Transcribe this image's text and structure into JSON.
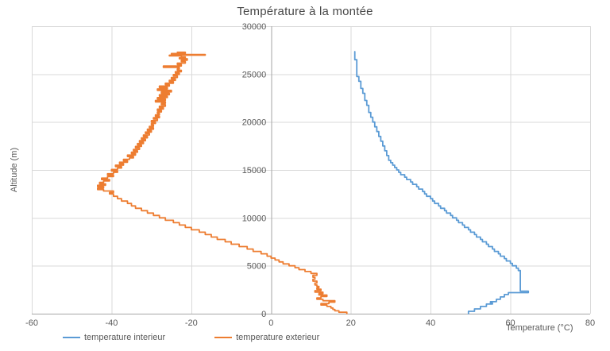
{
  "chart_data": {
    "type": "line",
    "title": "Température à la montée",
    "xlabel": "Temperature (°C)",
    "ylabel": "Altitude (m)",
    "xlim": [
      -60,
      80
    ],
    "ylim": [
      0,
      30000
    ],
    "x_ticks": [
      -60,
      -40,
      -20,
      0,
      20,
      40,
      60,
      80
    ],
    "y_ticks": [
      0,
      5000,
      10000,
      15000,
      20000,
      25000,
      30000
    ],
    "grid": true,
    "legend_position": "bottom",
    "line_style": "step",
    "points_format": "[altitude_m, temperature_C]",
    "colors": {
      "grid": "#d9d9d9",
      "axis": "#a6a6a6",
      "text": "#595959"
    },
    "series": [
      {
        "name": "temperature interieur",
        "color": "#5b9bd5",
        "points": [
          [
            0,
            49.5
          ],
          [
            250,
            51
          ],
          [
            500,
            52.5
          ],
          [
            750,
            54
          ],
          [
            1000,
            55.5
          ],
          [
            1100,
            55
          ],
          [
            1250,
            56.5
          ],
          [
            1500,
            57.5
          ],
          [
            1750,
            58.5
          ],
          [
            2000,
            59.5
          ],
          [
            2200,
            64.5
          ],
          [
            2350,
            62.5
          ],
          [
            4250,
            62.5
          ],
          [
            4500,
            62
          ],
          [
            4750,
            61.5
          ],
          [
            5000,
            60.5
          ],
          [
            5250,
            60
          ],
          [
            5500,
            59
          ],
          [
            5750,
            58.5
          ],
          [
            6000,
            57.5
          ],
          [
            6250,
            57
          ],
          [
            6500,
            56
          ],
          [
            6750,
            55.5
          ],
          [
            7000,
            54.5
          ],
          [
            7250,
            54
          ],
          [
            7500,
            53
          ],
          [
            7750,
            52.5
          ],
          [
            8000,
            51.5
          ],
          [
            8250,
            51
          ],
          [
            8500,
            50
          ],
          [
            8750,
            49.5
          ],
          [
            9000,
            48.5
          ],
          [
            9250,
            48
          ],
          [
            9500,
            47
          ],
          [
            9750,
            46.5
          ],
          [
            10000,
            45.5
          ],
          [
            10250,
            45
          ],
          [
            10500,
            44
          ],
          [
            10750,
            43.5
          ],
          [
            11000,
            42.5
          ],
          [
            11250,
            42
          ],
          [
            11500,
            41
          ],
          [
            11750,
            40.5
          ],
          [
            12000,
            40
          ],
          [
            12250,
            39
          ],
          [
            12500,
            38.5
          ],
          [
            12750,
            38
          ],
          [
            13000,
            37
          ],
          [
            13250,
            36.5
          ],
          [
            13500,
            35.5
          ],
          [
            13750,
            35
          ],
          [
            14000,
            34
          ],
          [
            14250,
            33.5
          ],
          [
            14500,
            32.5
          ],
          [
            14750,
            32
          ],
          [
            15000,
            31.5
          ],
          [
            15250,
            31
          ],
          [
            15500,
            30.5
          ],
          [
            15750,
            30
          ],
          [
            16000,
            29.5
          ],
          [
            16500,
            29
          ],
          [
            17000,
            28.5
          ],
          [
            17500,
            28
          ],
          [
            18000,
            27.5
          ],
          [
            18500,
            27
          ],
          [
            19000,
            26.5
          ],
          [
            19500,
            26
          ],
          [
            20000,
            25.5
          ],
          [
            20500,
            25
          ],
          [
            21000,
            24.5
          ],
          [
            21750,
            24
          ],
          [
            22250,
            23.5
          ],
          [
            23000,
            23
          ],
          [
            23500,
            22.5
          ],
          [
            24250,
            22
          ],
          [
            24750,
            21.5
          ],
          [
            26500,
            21
          ],
          [
            27350,
            21
          ]
        ]
      },
      {
        "name": "temperature exterieur",
        "color": "#ed7d31",
        "points": [
          [
            0,
            19
          ],
          [
            150,
            17
          ],
          [
            300,
            16
          ],
          [
            450,
            15.5
          ],
          [
            600,
            15
          ],
          [
            750,
            14
          ],
          [
            900,
            12.5
          ],
          [
            1050,
            14.5
          ],
          [
            1200,
            16
          ],
          [
            1350,
            13
          ],
          [
            1500,
            11.5
          ],
          [
            1650,
            12.5
          ],
          [
            1800,
            14
          ],
          [
            1950,
            12
          ],
          [
            2100,
            13
          ],
          [
            2250,
            11
          ],
          [
            2400,
            12.5
          ],
          [
            2550,
            11.5
          ],
          [
            2700,
            12
          ],
          [
            2850,
            11.5
          ],
          [
            3000,
            11
          ],
          [
            3200,
            11.5
          ],
          [
            3400,
            10.5
          ],
          [
            3600,
            11
          ],
          [
            3800,
            10.5
          ],
          [
            4000,
            11.5
          ],
          [
            4200,
            10
          ],
          [
            4400,
            8.5
          ],
          [
            4600,
            7
          ],
          [
            4800,
            6
          ],
          [
            5000,
            4.5
          ],
          [
            5200,
            3
          ],
          [
            5400,
            2
          ],
          [
            5600,
            1
          ],
          [
            5800,
            0
          ],
          [
            6000,
            -1
          ],
          [
            6250,
            -2.5
          ],
          [
            6500,
            -4.5
          ],
          [
            6750,
            -6
          ],
          [
            7000,
            -8
          ],
          [
            7250,
            -10
          ],
          [
            7500,
            -11.5
          ],
          [
            7750,
            -13.5
          ],
          [
            8000,
            -15
          ],
          [
            8250,
            -16.5
          ],
          [
            8500,
            -18
          ],
          [
            8750,
            -20
          ],
          [
            9000,
            -21.5
          ],
          [
            9250,
            -23
          ],
          [
            9500,
            -24.5
          ],
          [
            9750,
            -26.5
          ],
          [
            10000,
            -28
          ],
          [
            10250,
            -29.5
          ],
          [
            10500,
            -31
          ],
          [
            10750,
            -32.5
          ],
          [
            11000,
            -34
          ],
          [
            11250,
            -35
          ],
          [
            11500,
            -36
          ],
          [
            11750,
            -37.5
          ],
          [
            12000,
            -38.5
          ],
          [
            12250,
            -39.5
          ],
          [
            12500,
            -40.5
          ],
          [
            12650,
            -39.5
          ],
          [
            12800,
            -42
          ],
          [
            12950,
            -43.5
          ],
          [
            13100,
            -42
          ],
          [
            13250,
            -43.5
          ],
          [
            13400,
            -41.5
          ],
          [
            13550,
            -43
          ],
          [
            13700,
            -42
          ],
          [
            13850,
            -40.5
          ],
          [
            14000,
            -42.5
          ],
          [
            14150,
            -41
          ],
          [
            14300,
            -39.5
          ],
          [
            14450,
            -41
          ],
          [
            14600,
            -39.5
          ],
          [
            14750,
            -38.5
          ],
          [
            14900,
            -40
          ],
          [
            15050,
            -38.5
          ],
          [
            15200,
            -37.5
          ],
          [
            15350,
            -39
          ],
          [
            15500,
            -37
          ],
          [
            15650,
            -38
          ],
          [
            15800,
            -36
          ],
          [
            15950,
            -37
          ],
          [
            16100,
            -35.5
          ],
          [
            16250,
            -34.5
          ],
          [
            16400,
            -36
          ],
          [
            16550,
            -34
          ],
          [
            16700,
            -35
          ],
          [
            16850,
            -33.5
          ],
          [
            17000,
            -34.5
          ],
          [
            17150,
            -33
          ],
          [
            17300,
            -34
          ],
          [
            17450,
            -32.5
          ],
          [
            17600,
            -33.5
          ],
          [
            17750,
            -32
          ],
          [
            17900,
            -33
          ],
          [
            18050,
            -31.5
          ],
          [
            18200,
            -32.5
          ],
          [
            18350,
            -31
          ],
          [
            18500,
            -32
          ],
          [
            18650,
            -30.5
          ],
          [
            18800,
            -31.5
          ],
          [
            18950,
            -30
          ],
          [
            19100,
            -31
          ],
          [
            19250,
            -29.5
          ],
          [
            19400,
            -30.5
          ],
          [
            19550,
            -29.5
          ],
          [
            19700,
            -30
          ],
          [
            19850,
            -29
          ],
          [
            20000,
            -30
          ],
          [
            20150,
            -28.5
          ],
          [
            20300,
            -29.5
          ],
          [
            20450,
            -28
          ],
          [
            20600,
            -29
          ],
          [
            20750,
            -28
          ],
          [
            20900,
            -28.5
          ],
          [
            21050,
            -27.5
          ],
          [
            21200,
            -28.5
          ],
          [
            21350,
            -27
          ],
          [
            21500,
            -28
          ],
          [
            21650,
            -26.5
          ],
          [
            21800,
            -27.5
          ],
          [
            21950,
            -26.5
          ],
          [
            22100,
            -29
          ],
          [
            22250,
            -26.5
          ],
          [
            22400,
            -28.5
          ],
          [
            22550,
            -26
          ],
          [
            22700,
            -28
          ],
          [
            22850,
            -25.5
          ],
          [
            23000,
            -27.5
          ],
          [
            23150,
            -25
          ],
          [
            23300,
            -28.5
          ],
          [
            23450,
            -26
          ],
          [
            23600,
            -28
          ],
          [
            23750,
            -25.5
          ],
          [
            23900,
            -26.5
          ],
          [
            24050,
            -24.5
          ],
          [
            24200,
            -25.5
          ],
          [
            24350,
            -24
          ],
          [
            24500,
            -25
          ],
          [
            24650,
            -23.5
          ],
          [
            24800,
            -24.5
          ],
          [
            24950,
            -23
          ],
          [
            25100,
            -24
          ],
          [
            25250,
            -22.5
          ],
          [
            25400,
            -23.5
          ],
          [
            25550,
            -23
          ],
          [
            25700,
            -27
          ],
          [
            25850,
            -22.5
          ],
          [
            26000,
            -23.5
          ],
          [
            26150,
            -21.5
          ],
          [
            26300,
            -22.5
          ],
          [
            26450,
            -21
          ],
          [
            26600,
            -23
          ],
          [
            26700,
            -21.5
          ],
          [
            26800,
            -22.5
          ],
          [
            26900,
            -25.5
          ],
          [
            26975,
            -16.5
          ],
          [
            27050,
            -25
          ],
          [
            27150,
            -21.5
          ],
          [
            27280,
            -23.5
          ]
        ]
      }
    ]
  }
}
